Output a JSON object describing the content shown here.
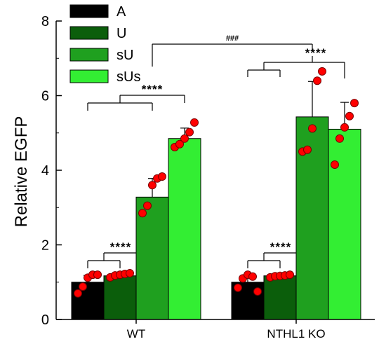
{
  "chart_data": {
    "type": "bar",
    "title": "",
    "xlabel": "",
    "ylabel": "Relative EGFP",
    "ylim": [
      0,
      8
    ],
    "yticks": [
      0,
      2,
      4,
      6,
      8
    ],
    "grid": false,
    "legend_position": "top-left",
    "categories": [
      "WT",
      "NTHL1 KO"
    ],
    "series": [
      {
        "name": "A",
        "color": "#000000",
        "values": [
          1.0,
          1.0
        ],
        "errors": [
          0.18,
          0.17
        ],
        "points": [
          [
            0.7,
            0.88,
            1.12,
            1.2,
            1.2
          ],
          [
            0.85,
            1.1,
            1.2,
            1.15,
            0.75
          ]
        ]
      },
      {
        "name": "U",
        "color": "#0b5e0b",
        "values": [
          1.17,
          1.17
        ],
        "errors": [
          0.05,
          0.04
        ],
        "points": [
          [
            1.13,
            1.18,
            1.2,
            1.22,
            1.24
          ],
          [
            1.13,
            1.16,
            1.17,
            1.18,
            1.2
          ]
        ]
      },
      {
        "name": "sU",
        "color": "#1fa01f",
        "values": [
          3.28,
          5.43
        ],
        "errors": [
          0.5,
          0.95
        ],
        "points": [
          [
            2.85,
            3.05,
            3.6,
            3.78,
            3.83
          ],
          [
            4.5,
            4.55,
            5.12,
            6.4,
            6.65
          ]
        ]
      },
      {
        "name": "sUs",
        "color": "#33ee33",
        "values": [
          4.85,
          5.1
        ],
        "errors": [
          0.28,
          0.72
        ],
        "points": [
          [
            4.62,
            4.7,
            4.85,
            5.02,
            5.28
          ],
          [
            4.15,
            4.85,
            5.15,
            5.45,
            5.8
          ]
        ]
      }
    ],
    "annotations": [
      {
        "label": "****",
        "note": "WT A/U comparison"
      },
      {
        "label": "****",
        "note": "WT A,U,sU vs sUs"
      },
      {
        "label": "****",
        "note": "NTHL1 KO A/U comparison"
      },
      {
        "label": "****",
        "note": "NTHL1 KO A,U vs sU,sUs"
      },
      {
        "label": "###",
        "note": "WT sU vs NTHL1 KO sU"
      }
    ]
  }
}
